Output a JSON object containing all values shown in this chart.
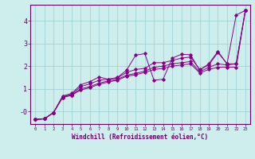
{
  "xlabel": "Windchill (Refroidissement éolien,°C)",
  "background_color": "#ceeeed",
  "grid_color": "#99cccc",
  "line_color": "#880088",
  "x": [
    0,
    1,
    2,
    3,
    4,
    5,
    6,
    7,
    8,
    9,
    10,
    11,
    12,
    13,
    14,
    15,
    16,
    17,
    18,
    19,
    20,
    21,
    22,
    23
  ],
  "line1": [
    -0.35,
    -0.32,
    -0.05,
    0.62,
    0.72,
    0.95,
    1.05,
    1.2,
    1.3,
    1.38,
    1.55,
    1.62,
    1.72,
    1.85,
    1.9,
    2.0,
    2.05,
    2.1,
    1.7,
    1.85,
    1.95,
    1.95,
    1.95,
    4.45
  ],
  "line2": [
    -0.35,
    -0.32,
    -0.05,
    0.62,
    0.72,
    1.0,
    1.1,
    1.25,
    1.35,
    1.42,
    1.6,
    1.68,
    1.78,
    1.95,
    2.0,
    2.1,
    2.15,
    2.2,
    1.75,
    1.95,
    2.1,
    2.05,
    2.1,
    4.45
  ],
  "line3": [
    -0.35,
    -0.32,
    -0.05,
    0.65,
    0.75,
    1.1,
    1.22,
    1.38,
    1.42,
    1.48,
    1.72,
    1.85,
    1.9,
    2.15,
    2.15,
    2.25,
    2.35,
    2.4,
    1.85,
    2.05,
    2.6,
    2.1,
    2.1,
    4.45
  ],
  "line4": [
    -0.35,
    -0.32,
    -0.05,
    0.68,
    0.8,
    1.18,
    1.32,
    1.52,
    1.42,
    1.5,
    1.82,
    2.48,
    2.55,
    1.38,
    1.42,
    2.35,
    2.52,
    2.5,
    1.82,
    2.1,
    2.65,
    2.1,
    4.25,
    4.45
  ],
  "ylim": [
    -0.55,
    4.7
  ],
  "xlim": [
    -0.5,
    23.5
  ],
  "yticks": [
    0,
    1,
    2,
    3,
    4
  ],
  "ytick_labels": [
    "-0",
    "1",
    "2",
    "3",
    "4"
  ],
  "xticks": [
    0,
    1,
    2,
    3,
    4,
    5,
    6,
    7,
    8,
    9,
    10,
    11,
    12,
    13,
    14,
    15,
    16,
    17,
    18,
    19,
    20,
    21,
    22,
    23
  ]
}
